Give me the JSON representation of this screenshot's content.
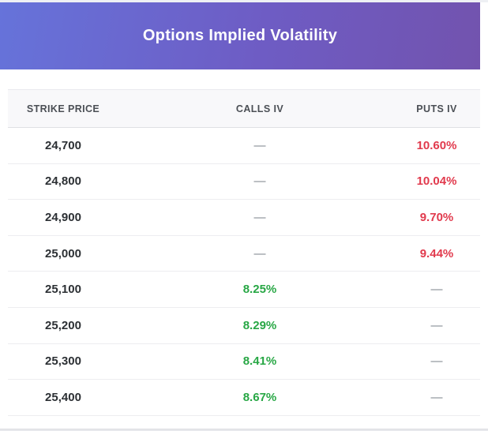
{
  "header": {
    "title": "Options Implied Volatility"
  },
  "colors": {
    "gradient_left": "#6673da",
    "gradient_right": "#7253ae",
    "calls_green": "#28a745",
    "puts_red": "#e13a4d",
    "dash_gray": "#798088",
    "header_bg": "#f8f8fa"
  },
  "table": {
    "columns": [
      {
        "key": "strike",
        "label": "STRIKE PRICE"
      },
      {
        "key": "calls",
        "label": "CALLS IV"
      },
      {
        "key": "puts",
        "label": "PUTS IV"
      }
    ],
    "rows": [
      {
        "strike": "24,700",
        "calls": "—",
        "puts": "10.60%"
      },
      {
        "strike": "24,800",
        "calls": "—",
        "puts": "10.04%"
      },
      {
        "strike": "24,900",
        "calls": "—",
        "puts": "9.70%"
      },
      {
        "strike": "25,000",
        "calls": "—",
        "puts": "9.44%"
      },
      {
        "strike": "25,100",
        "calls": "8.25%",
        "puts": "—"
      },
      {
        "strike": "25,200",
        "calls": "8.29%",
        "puts": "—"
      },
      {
        "strike": "25,300",
        "calls": "8.41%",
        "puts": "—"
      },
      {
        "strike": "25,400",
        "calls": "8.67%",
        "puts": "—"
      }
    ]
  }
}
